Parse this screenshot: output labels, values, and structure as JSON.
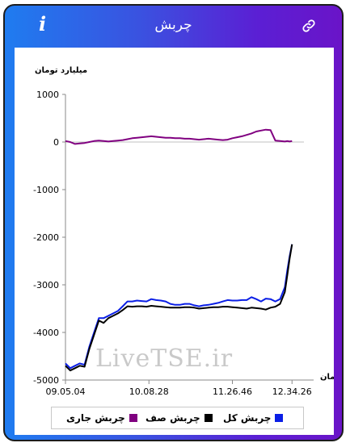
{
  "header": {
    "title": "چربش",
    "info_glyph": "i"
  },
  "colors": {
    "total": "#0a1ee6",
    "queue": "#000000",
    "current": "#800080",
    "zero_line": "#c0c0c0"
  },
  "watermark": "LiveTSE.ir",
  "chart_data": {
    "type": "line",
    "ylabel": "میلیارد تومان",
    "xlabel": "زمان",
    "ylim": [
      -5000,
      1000
    ],
    "yticks": [
      1000,
      0,
      -1000,
      -2000,
      -3000,
      -4000,
      -5000
    ],
    "ytick_labels": [
      "1000",
      "0",
      "-1000",
      "-2000",
      "-3000",
      "-4000",
      "-5000"
    ],
    "xlim": [
      0,
      100
    ],
    "xticks": [
      0,
      35,
      70,
      95
    ],
    "xtick_labels": [
      "09.05.04",
      "10.08.28",
      "11.26.46",
      "12.34.26"
    ],
    "legend_position": "bottom",
    "series": [
      {
        "name": "چربش کل",
        "key": "total",
        "x": [
          0,
          2,
          4,
          6,
          8,
          10,
          12,
          14,
          16,
          18,
          20,
          22,
          24,
          26,
          28,
          30,
          32,
          34,
          36,
          38,
          40,
          42,
          44,
          46,
          48,
          50,
          52,
          54,
          56,
          58,
          60,
          62,
          64,
          66,
          68,
          70,
          72,
          74,
          76,
          78,
          80,
          82,
          84,
          86,
          88,
          90,
          92,
          93,
          94,
          95
        ],
        "y": [
          -4650,
          -4750,
          -4700,
          -4650,
          -4680,
          -4300,
          -4000,
          -3700,
          -3700,
          -3650,
          -3600,
          -3550,
          -3450,
          -3350,
          -3350,
          -3330,
          -3340,
          -3350,
          -3300,
          -3320,
          -3330,
          -3350,
          -3400,
          -3420,
          -3420,
          -3400,
          -3400,
          -3430,
          -3450,
          -3430,
          -3420,
          -3400,
          -3380,
          -3350,
          -3320,
          -3330,
          -3330,
          -3320,
          -3320,
          -3260,
          -3300,
          -3350,
          -3290,
          -3300,
          -3350,
          -3300,
          -3050,
          -2700,
          -2400,
          -2150
        ]
      },
      {
        "name": "چربش صف",
        "key": "queue",
        "x": [
          0,
          2,
          4,
          6,
          8,
          10,
          12,
          14,
          16,
          18,
          20,
          22,
          24,
          26,
          28,
          30,
          32,
          34,
          36,
          38,
          40,
          42,
          44,
          46,
          48,
          50,
          52,
          54,
          56,
          58,
          60,
          62,
          64,
          66,
          68,
          70,
          72,
          74,
          76,
          78,
          80,
          82,
          84,
          86,
          88,
          90,
          92,
          93,
          94,
          95
        ],
        "y": [
          -4700,
          -4800,
          -4750,
          -4700,
          -4720,
          -4350,
          -4050,
          -3750,
          -3800,
          -3700,
          -3650,
          -3600,
          -3530,
          -3450,
          -3460,
          -3450,
          -3450,
          -3460,
          -3440,
          -3450,
          -3460,
          -3470,
          -3480,
          -3480,
          -3480,
          -3470,
          -3470,
          -3480,
          -3500,
          -3490,
          -3480,
          -3470,
          -3470,
          -3460,
          -3460,
          -3470,
          -3480,
          -3490,
          -3500,
          -3480,
          -3490,
          -3500,
          -3520,
          -3480,
          -3460,
          -3400,
          -3150,
          -2800,
          -2450,
          -2150
        ]
      },
      {
        "name": "چربش جاری",
        "key": "current",
        "x": [
          0,
          2,
          4,
          6,
          8,
          10,
          12,
          14,
          16,
          18,
          20,
          22,
          24,
          26,
          28,
          30,
          32,
          34,
          36,
          38,
          40,
          42,
          44,
          46,
          48,
          50,
          52,
          54,
          56,
          58,
          60,
          62,
          64,
          66,
          68,
          70,
          72,
          74,
          76,
          78,
          80,
          82,
          84,
          86,
          88,
          90,
          92,
          93,
          94,
          95
        ],
        "y": [
          20,
          0,
          -40,
          -30,
          -20,
          0,
          20,
          30,
          20,
          10,
          20,
          30,
          40,
          60,
          80,
          90,
          100,
          110,
          120,
          110,
          100,
          90,
          90,
          80,
          80,
          70,
          70,
          60,
          50,
          60,
          70,
          60,
          50,
          40,
          50,
          80,
          100,
          120,
          150,
          180,
          220,
          240,
          260,
          250,
          30,
          20,
          10,
          20,
          10,
          20
        ]
      }
    ]
  }
}
